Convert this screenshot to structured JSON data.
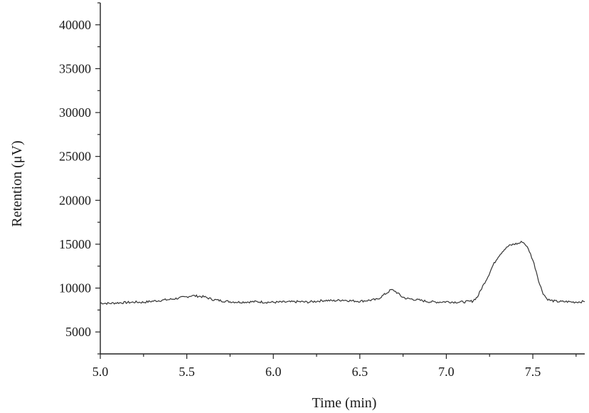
{
  "chart_data": {
    "type": "line",
    "title": "",
    "xlabel": "Time (min)",
    "ylabel": "Retention (μV)",
    "xlim": [
      5.0,
      7.8
    ],
    "ylim": [
      2500,
      42500
    ],
    "x_ticks": [
      5.0,
      5.5,
      6.0,
      6.5,
      7.0,
      7.5
    ],
    "x_tick_labels": [
      "5.0",
      "5.5",
      "6.0",
      "6.5",
      "7.0",
      "7.5"
    ],
    "y_ticks": [
      5000,
      10000,
      15000,
      20000,
      25000,
      30000,
      35000,
      40000
    ],
    "y_tick_labels": [
      "5000",
      "10000",
      "15000",
      "20000",
      "25000",
      "30000",
      "35000",
      "40000"
    ],
    "grid": false,
    "legend": "none",
    "line_color": "#333333",
    "series": [
      {
        "x": [
          5.0,
          5.05,
          5.1,
          5.15,
          5.2,
          5.25,
          5.3,
          5.35,
          5.4,
          5.45,
          5.5,
          5.53,
          5.55,
          5.58,
          5.6,
          5.65,
          5.7,
          5.75,
          5.8,
          5.85,
          5.9,
          5.95,
          6.0,
          6.05,
          6.1,
          6.15,
          6.2,
          6.25,
          6.3,
          6.35,
          6.4,
          6.45,
          6.5,
          6.55,
          6.6,
          6.63,
          6.66,
          6.68,
          6.7,
          6.72,
          6.74,
          6.77,
          6.8,
          6.85,
          6.9,
          6.95,
          7.0,
          7.05,
          7.1,
          7.15,
          7.18,
          7.21,
          7.24,
          7.27,
          7.3,
          7.33,
          7.36,
          7.39,
          7.42,
          7.44,
          7.46,
          7.48,
          7.5,
          7.52,
          7.54,
          7.56,
          7.58,
          7.6,
          7.63,
          7.66,
          7.7,
          7.74,
          7.78,
          7.8
        ],
        "y": [
          8300,
          8250,
          8320,
          8350,
          8400,
          8380,
          8500,
          8600,
          8700,
          8850,
          9000,
          9150,
          9100,
          9050,
          9000,
          8700,
          8550,
          8450,
          8400,
          8420,
          8450,
          8400,
          8380,
          8400,
          8420,
          8450,
          8400,
          8500,
          8600,
          8550,
          8650,
          8550,
          8500,
          8600,
          8700,
          9100,
          9500,
          9800,
          9700,
          9400,
          9050,
          8800,
          8750,
          8600,
          8450,
          8400,
          8450,
          8400,
          8420,
          8500,
          9000,
          10200,
          11300,
          12600,
          13600,
          14300,
          14800,
          15000,
          15100,
          15300,
          14900,
          14200,
          13200,
          11900,
          10400,
          9400,
          8800,
          8600,
          8500,
          8450,
          8450,
          8400,
          8450,
          8450
        ]
      }
    ]
  }
}
